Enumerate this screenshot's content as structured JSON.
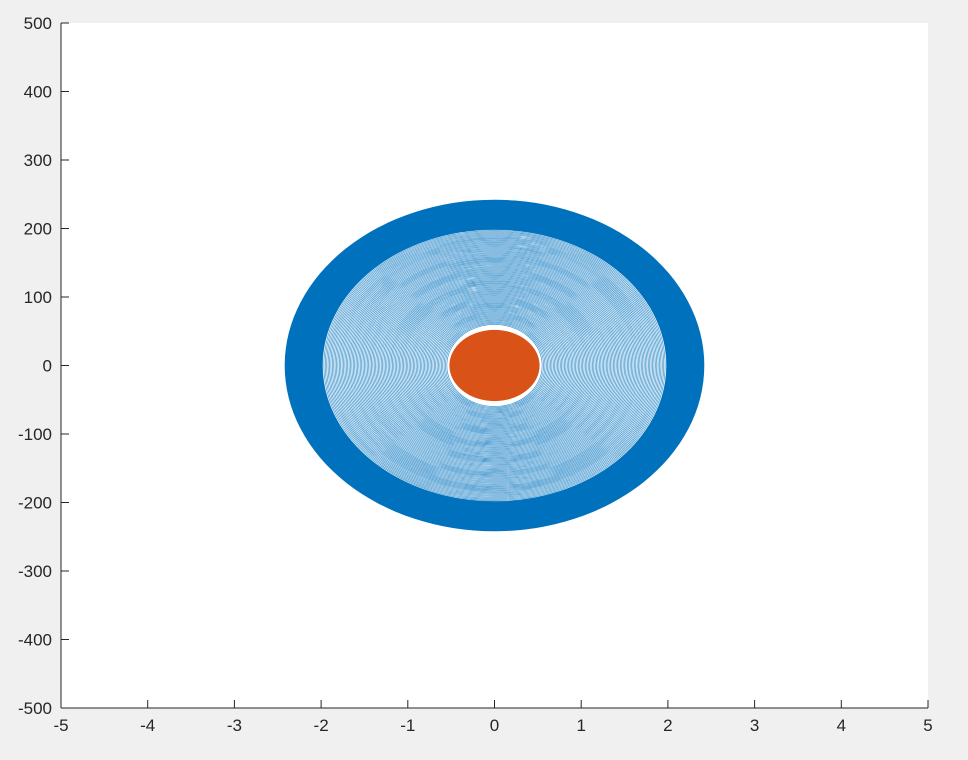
{
  "chart_data": {
    "type": "line",
    "title": "",
    "xlabel": "",
    "ylabel": "",
    "xlim": [
      -5,
      5
    ],
    "ylim": [
      -500,
      500
    ],
    "x_ticks": [
      "-5",
      "-4",
      "-3",
      "-2",
      "-1",
      "0",
      "1",
      "2",
      "3",
      "4",
      "5"
    ],
    "y_ticks": [
      "500",
      "400",
      "300",
      "200",
      "100",
      "0",
      "-100",
      "-200",
      "-300",
      "-400",
      "-500"
    ],
    "grid": false,
    "legend": "none",
    "series": [
      {
        "color": "#0072BD",
        "shape": "closed curves about origin, radius growing from inner to outer",
        "inner_rx": 0.55,
        "inner_ry": 60,
        "outer_rx": 2.42,
        "outer_ry": 242,
        "curves": 90
      },
      {
        "color": "#D95319",
        "shape": "filled closed curve about origin",
        "rx": 0.52,
        "ry": 52
      }
    ]
  }
}
